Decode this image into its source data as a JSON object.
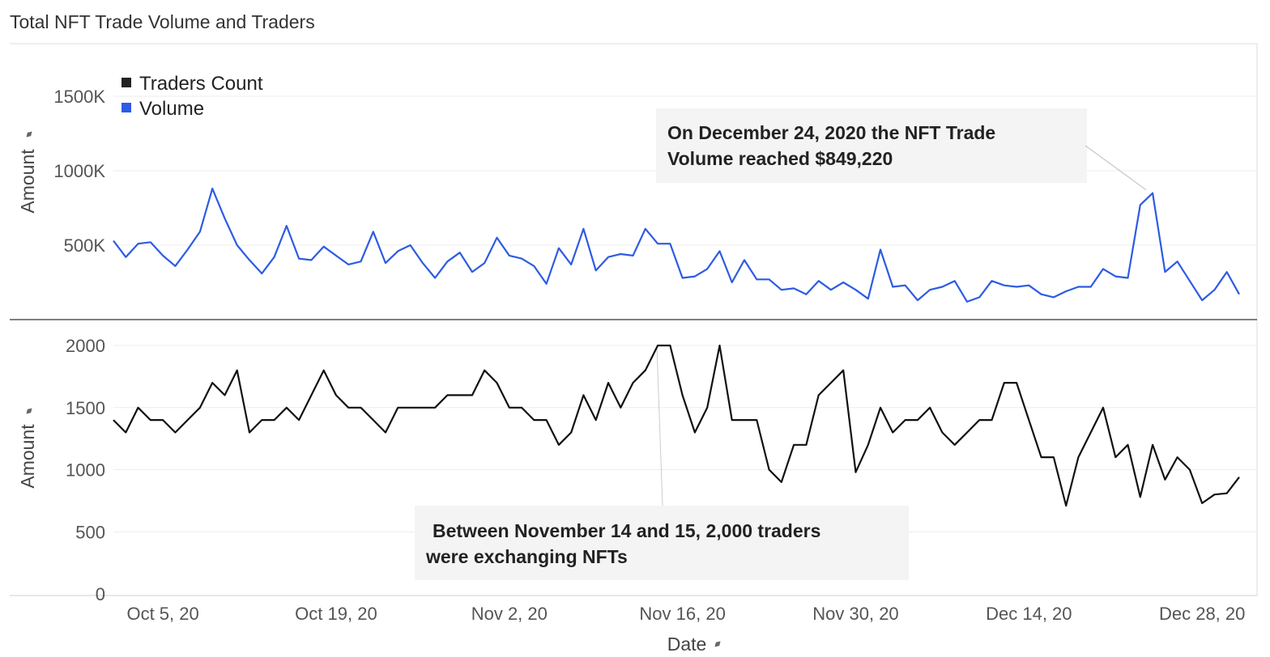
{
  "title": "Total NFT Trade Volume and Traders",
  "colors": {
    "volume": "#2d5be3",
    "traders": "#111111",
    "grid": "#ececec",
    "annotation_bg": "#f4f4f4"
  },
  "chart_data": [
    {
      "type": "line",
      "ylabel": "Amount",
      "ylim": [
        0,
        1850000
      ],
      "yticks": [
        500000,
        1000000,
        1500000
      ],
      "ytick_labels": [
        "500K",
        "1000K",
        "1500K"
      ],
      "grid": true,
      "legend": {
        "placement": "top-left",
        "entries": [
          {
            "label": "Traders Count",
            "color": "#222222"
          },
          {
            "label": "Volume",
            "color": "#2d5be3"
          }
        ]
      },
      "series": [
        {
          "name": "Volume",
          "color": "#2d5be3",
          "x_start": "2020-10-01",
          "x_end": "2020-12-31",
          "values": [
            530000,
            420000,
            510000,
            520000,
            430000,
            360000,
            470000,
            590000,
            880000,
            680000,
            500000,
            400000,
            310000,
            420000,
            630000,
            410000,
            400000,
            490000,
            430000,
            370000,
            390000,
            590000,
            380000,
            460000,
            500000,
            380000,
            280000,
            390000,
            450000,
            320000,
            380000,
            550000,
            430000,
            410000,
            360000,
            240000,
            480000,
            370000,
            610000,
            330000,
            420000,
            440000,
            430000,
            610000,
            510000,
            510000,
            280000,
            290000,
            340000,
            460000,
            250000,
            400000,
            270000,
            270000,
            200000,
            210000,
            170000,
            260000,
            200000,
            250000,
            200000,
            140000,
            470000,
            220000,
            230000,
            130000,
            200000,
            220000,
            260000,
            120000,
            150000,
            260000,
            230000,
            220000,
            230000,
            170000,
            150000,
            190000,
            220000,
            220000,
            340000,
            290000,
            280000,
            770000,
            849220,
            320000,
            390000,
            260000,
            130000,
            200000,
            320000,
            170000
          ]
        }
      ],
      "annotation": {
        "text_line1": "On December 24, 2020 the NFT Trade",
        "text_line2": "Volume reached $849,220",
        "point": [
          "2020-12-24",
          849220
        ]
      }
    },
    {
      "type": "line",
      "ylabel": "Amount",
      "xlabel": "Date",
      "ylim": [
        0,
        2200
      ],
      "yticks": [
        0,
        500,
        1000,
        1500,
        2000
      ],
      "ytick_labels": [
        "0",
        "500",
        "1000",
        "1500",
        "2000"
      ],
      "grid": true,
      "x_ticks": [
        "2020-10-05",
        "2020-10-19",
        "2020-11-02",
        "2020-11-16",
        "2020-11-30",
        "2020-12-14",
        "2020-12-28"
      ],
      "x_tick_labels": [
        "Oct 5, 20",
        "Oct 19, 20",
        "Nov 2, 20",
        "Nov 16, 20",
        "Nov 30, 20",
        "Dec 14, 20",
        "Dec 28, 20"
      ],
      "series": [
        {
          "name": "Traders Count",
          "color": "#111111",
          "x_start": "2020-10-01",
          "x_end": "2020-12-31",
          "values": [
            1400,
            1300,
            1500,
            1400,
            1400,
            1300,
            1400,
            1500,
            1700,
            1600,
            1800,
            1300,
            1400,
            1400,
            1500,
            1400,
            1600,
            1800,
            1600,
            1500,
            1500,
            1400,
            1300,
            1500,
            1500,
            1500,
            1500,
            1600,
            1600,
            1600,
            1800,
            1700,
            1500,
            1500,
            1400,
            1400,
            1200,
            1300,
            1600,
            1400,
            1700,
            1500,
            1700,
            1800,
            2000,
            2000,
            1600,
            1300,
            1500,
            2000,
            1400,
            1400,
            1400,
            1000,
            900,
            1200,
            1200,
            1600,
            1700,
            1800,
            980,
            1200,
            1500,
            1300,
            1400,
            1400,
            1500,
            1300,
            1200,
            1300,
            1400,
            1400,
            1700,
            1700,
            1400,
            1100,
            1100,
            710,
            1100,
            1300,
            1500,
            1100,
            1200,
            780,
            1200,
            920,
            1100,
            1000,
            730,
            800,
            810,
            940
          ]
        }
      ],
      "annotation": {
        "text_line1": "Between November 14 and 15, 2,000 traders",
        "text_line2": "were exchanging NFTs",
        "point": [
          "2020-11-14",
          2000
        ]
      }
    }
  ]
}
